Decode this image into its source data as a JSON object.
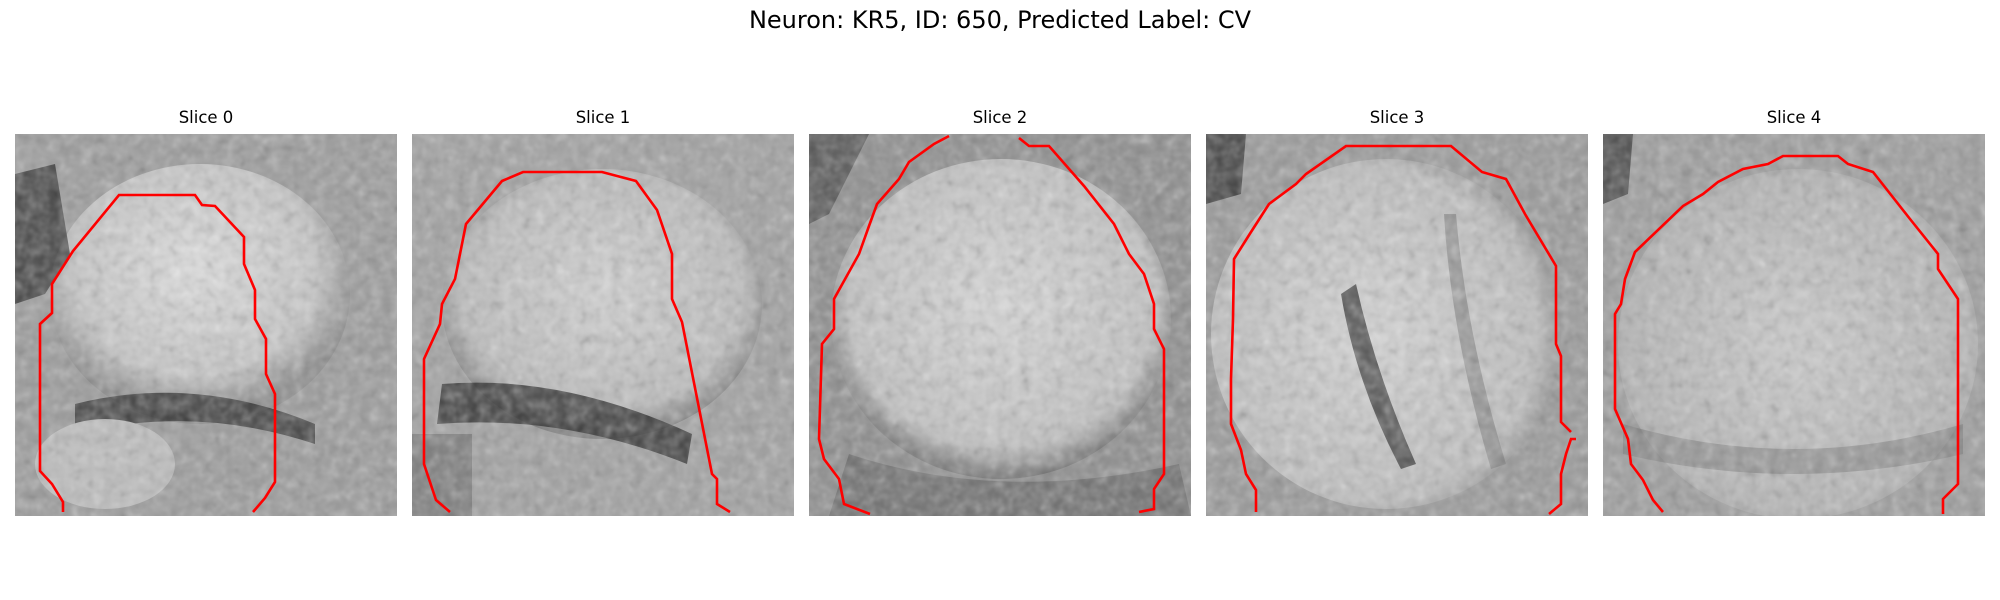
{
  "figure": {
    "title": "Neuron: KR5, ID: 650, Predicted Label: CV",
    "contour_color": "#ff0000"
  },
  "slices": [
    {
      "title": "Slice 0"
    },
    {
      "title": "Slice 1"
    },
    {
      "title": "Slice 2"
    },
    {
      "title": "Slice 3"
    },
    {
      "title": "Slice 4"
    }
  ]
}
